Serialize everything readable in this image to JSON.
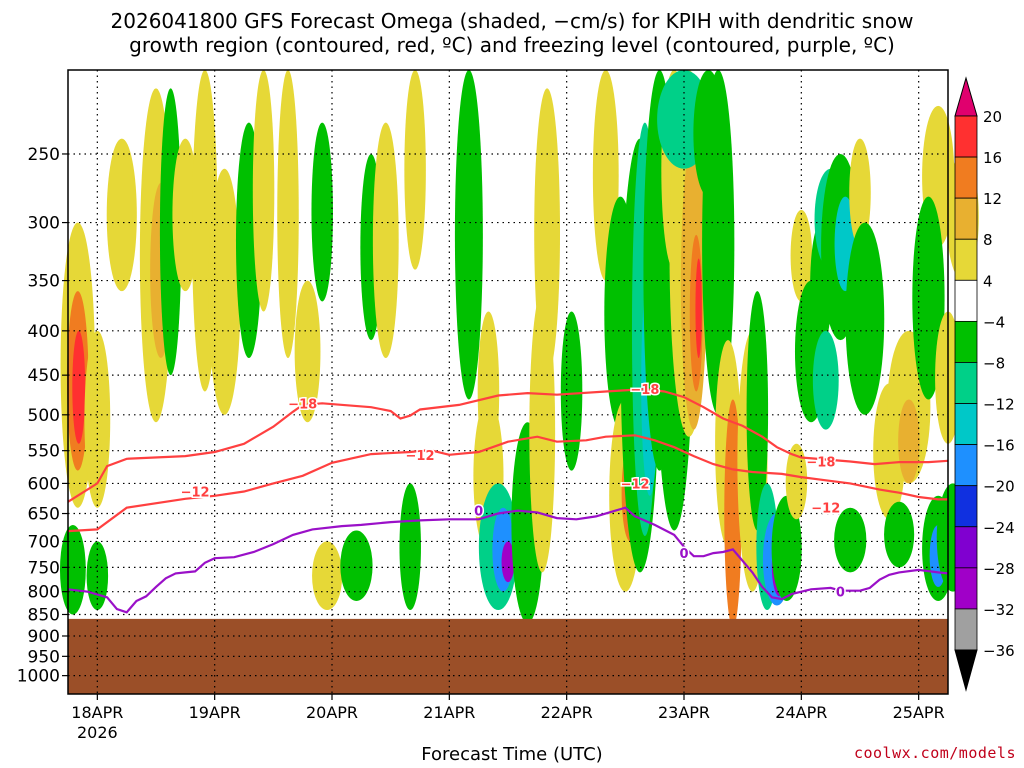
{
  "title": {
    "line1": "2026041800 GFS Forecast Omega (shaded, −cm/s) for KPIH with dendritic snow",
    "line2": "growth region (contoured, red, ºC) and freezing level (contoured, purple, ºC)"
  },
  "credit": "coolwx.com/models",
  "chart_data": {
    "type": "heatmap",
    "title": "2026041800 GFS Forecast Omega (shaded, −cm/s) for KPIH with dendritic snow growth region (contoured, red, ºC) and freezing level (contoured, purple, ºC)",
    "xlabel": "Forecast Time (UTC)",
    "ylabel": "",
    "x_ticks": [
      "18APR",
      "19APR",
      "20APR",
      "21APR",
      "22APR",
      "23APR",
      "24APR",
      "25APR"
    ],
    "x_year_label": "2026",
    "x_range_hours": [
      0,
      180
    ],
    "y_scale": "log",
    "y_range": [
      1050,
      200
    ],
    "y_ticks": [
      250,
      300,
      350,
      400,
      450,
      500,
      550,
      600,
      650,
      700,
      750,
      800,
      850,
      900,
      950,
      1000
    ],
    "grid": true,
    "colorbar": {
      "levels": [
        20,
        16,
        12,
        8,
        4,
        -4,
        -8,
        -12,
        -16,
        -20,
        -24,
        -28,
        -32,
        -36
      ],
      "labels": [
        "20",
        "16",
        "12",
        "8",
        "4",
        "−4",
        "−8",
        "−12",
        "−16",
        "−20",
        "−24",
        "−28",
        "−32",
        "−36"
      ],
      "colors": [
        "#e0006e",
        "#ff3030",
        "#f07c20",
        "#e8b030",
        "#e6d837",
        "#ffffff",
        "#00c000",
        "#00d088",
        "#00c8c8",
        "#1e90ff",
        "#1030e0",
        "#8000d0",
        "#a000c8",
        "#a0a0a0",
        "#000000"
      ]
    },
    "ground": {
      "pressure_top_hpa": 860,
      "color": "#9b4f28"
    },
    "contours": {
      "temperature": [
        {
          "name": "-18",
          "color": "#ff4040",
          "label": "−18",
          "points": [
            [
              0,
              630
            ],
            [
              6,
              600
            ],
            [
              8,
              573
            ],
            [
              12,
              562
            ],
            [
              24,
              558
            ],
            [
              30,
              552
            ],
            [
              36,
              540
            ],
            [
              42,
              516
            ],
            [
              46,
              496
            ],
            [
              48,
              487
            ],
            [
              52,
              485
            ],
            [
              62,
              490
            ],
            [
              66,
              495
            ],
            [
              68,
              505
            ],
            [
              70,
              501
            ],
            [
              72,
              493
            ],
            [
              80,
              487
            ],
            [
              88,
              475
            ],
            [
              94,
              472
            ],
            [
              100,
              474
            ],
            [
              110,
              470
            ],
            [
              118,
              467
            ],
            [
              122,
              470
            ],
            [
              126,
              477
            ],
            [
              130,
              490
            ],
            [
              134,
              505
            ],
            [
              138,
              515
            ],
            [
              142,
              530
            ],
            [
              145,
              545
            ],
            [
              148,
              555
            ],
            [
              150,
              560
            ],
            [
              155,
              563
            ],
            [
              160,
              566
            ],
            [
              165,
              570
            ],
            [
              170,
              567
            ],
            [
              176,
              567
            ],
            [
              180,
              565
            ]
          ],
          "labels_at": [
            [
              48,
              485
            ],
            [
              118,
              467
            ],
            [
              154,
              566
            ]
          ]
        },
        {
          "name": "-12",
          "color": "#ff4040",
          "label": "−12",
          "points": [
            [
              0,
              681
            ],
            [
              6,
              678
            ],
            [
              12,
              640
            ],
            [
              24,
              625
            ],
            [
              30,
              620
            ],
            [
              36,
              613
            ],
            [
              42,
              600
            ],
            [
              48,
              588
            ],
            [
              54,
              568
            ],
            [
              62,
              555
            ],
            [
              70,
              552
            ],
            [
              74,
              549
            ],
            [
              78,
              556
            ],
            [
              84,
              552
            ],
            [
              88,
              542
            ],
            [
              90,
              537
            ],
            [
              96,
              530
            ],
            [
              100,
              537
            ],
            [
              106,
              535
            ],
            [
              110,
              530
            ],
            [
              116,
              528
            ],
            [
              120,
              535
            ],
            [
              124,
              545
            ],
            [
              128,
              558
            ],
            [
              132,
              570
            ],
            [
              136,
              578
            ],
            [
              140,
              582
            ],
            [
              146,
              585
            ],
            [
              150,
              590
            ],
            [
              155,
              595
            ],
            [
              160,
              600
            ],
            [
              166,
              610
            ],
            [
              170,
              615
            ],
            [
              174,
              622
            ],
            [
              178,
              626
            ],
            [
              180,
              626
            ]
          ],
          "labels_at": [
            [
              26,
              613
            ],
            [
              72,
              556
            ],
            [
              116,
              600
            ],
            [
              155,
              640
            ]
          ]
        },
        {
          "name": "0",
          "color": "#9a10c8",
          "label": "0",
          "points": [
            [
              0,
              795
            ],
            [
              4,
              800
            ],
            [
              8,
              812
            ],
            [
              10,
              838
            ],
            [
              12,
              845
            ],
            [
              14,
              820
            ],
            [
              16,
              810
            ],
            [
              18,
              790
            ],
            [
              20,
              772
            ],
            [
              22,
              762
            ],
            [
              24,
              760
            ],
            [
              26,
              758
            ],
            [
              28,
              741
            ],
            [
              30,
              732
            ],
            [
              34,
              730
            ],
            [
              38,
              720
            ],
            [
              42,
              705
            ],
            [
              46,
              688
            ],
            [
              50,
              678
            ],
            [
              56,
              672
            ],
            [
              60,
              670
            ],
            [
              66,
              665
            ],
            [
              72,
              662
            ],
            [
              78,
              660
            ],
            [
              84,
              660
            ],
            [
              88,
              650
            ],
            [
              92,
              645
            ],
            [
              96,
              648
            ],
            [
              100,
              658
            ],
            [
              104,
              660
            ],
            [
              108,
              655
            ],
            [
              112,
              645
            ],
            [
              114,
              640
            ],
            [
              116,
              655
            ],
            [
              120,
              670
            ],
            [
              124,
              688
            ],
            [
              126,
              710
            ],
            [
              128,
              728
            ],
            [
              130,
              728
            ],
            [
              132,
              722
            ],
            [
              134,
              720
            ],
            [
              136,
              715
            ],
            [
              140,
              760
            ],
            [
              142,
              790
            ],
            [
              144,
              812
            ],
            [
              146,
              816
            ],
            [
              148,
              805
            ],
            [
              150,
              800
            ],
            [
              152,
              795
            ],
            [
              156,
              792
            ],
            [
              158,
              798
            ],
            [
              162,
              798
            ],
            [
              164,
              792
            ],
            [
              166,
              775
            ],
            [
              168,
              765
            ],
            [
              170,
              760
            ],
            [
              174,
              755
            ],
            [
              178,
              760
            ],
            [
              180,
              762
            ]
          ],
          "labels_at": [
            [
              84,
              645
            ],
            [
              126,
              722
            ],
            [
              158,
              800
            ]
          ]
        }
      ]
    }
  },
  "x_axis": {
    "label": "Forecast Time (UTC)",
    "year": "2026"
  }
}
